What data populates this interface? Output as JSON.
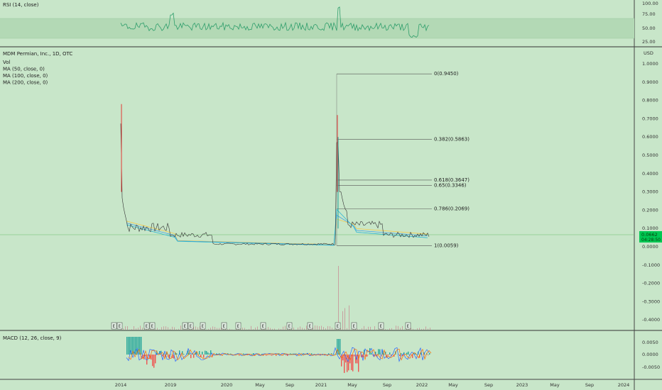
{
  "colors": {
    "background": "#c8e6c9",
    "rsi_band": "#b7dbb9",
    "rsi_line": "#2e9e6b",
    "price_line": "#333333",
    "ma50": "#26b5d6",
    "ma100": "#4aa3df",
    "ma200": "#f2c94c",
    "fib_line": "#555555",
    "macd_pos": "#26a69a",
    "macd_neg": "#ef5350",
    "current_price_bg": "#00c853",
    "horizontal_green": "#66bb6a"
  },
  "rsi": {
    "label": "RSI (14, close)",
    "axis_ticks": [
      "100.00",
      "75.00",
      "50.00",
      "25.00"
    ]
  },
  "main": {
    "title": "MDM Permian, Inc., 1D, OTC",
    "currency": "USD",
    "legend": [
      "Vol",
      "MA (50, close, 0)",
      "MA (100, close, 0)",
      "MA (200, close, 0)"
    ],
    "price_ticks": [
      "1.0000",
      "0.9000",
      "0.8000",
      "0.7000",
      "0.6000",
      "0.5000",
      "0.4000",
      "0.3000",
      "0.2000",
      "0.1000",
      "0.0000",
      "-0.1000",
      "-0.2000",
      "-0.3000",
      "-0.4000"
    ],
    "current_price": "0.0662",
    "countdown": "04:28:50",
    "earnings_marker": "E"
  },
  "fib": [
    {
      "label": "0(0.9450)",
      "value": 0.945
    },
    {
      "label": "0.382(0.5863)",
      "value": 0.5863
    },
    {
      "label": "0.618(0.3647)",
      "value": 0.3647
    },
    {
      "label": "0.65(0.3346)",
      "value": 0.3346
    },
    {
      "label": "0.786(0.2069)",
      "value": 0.2069
    },
    {
      "label": "1(0.0059)",
      "value": 0.0059
    }
  ],
  "macd": {
    "label": "MACD (12, 26, close, 9)",
    "axis_ticks": [
      "0.0050",
      "0.0000",
      "-0.0050"
    ]
  },
  "time_axis": [
    "2014",
    "2019",
    "2020",
    "May",
    "Sep",
    "2021",
    "May",
    "Sep",
    "2022",
    "May",
    "Sep",
    "2023",
    "May",
    "Sep",
    "2024"
  ],
  "chart_data": {
    "type": "line",
    "title": "MDM Permian, Inc., 1D, OTC",
    "ylabel": "USD",
    "ylim": [
      -0.45,
      1.05
    ],
    "fibonacci_levels": [
      {
        "level": 0,
        "price": 0.945
      },
      {
        "level": 0.382,
        "price": 0.5863
      },
      {
        "level": 0.618,
        "price": 0.3647
      },
      {
        "level": 0.65,
        "price": 0.3346
      },
      {
        "level": 0.786,
        "price": 0.2069
      },
      {
        "level": 1,
        "price": 0.0059
      }
    ],
    "price_series": [
      {
        "x": "2014",
        "y": 0.78
      },
      {
        "x": "2014",
        "y": 0.3
      },
      {
        "x": "2014",
        "y": 0.12
      },
      {
        "x": "2019",
        "y": 0.08
      },
      {
        "x": "2019",
        "y": 0.04
      },
      {
        "x": "2020",
        "y": 0.02
      },
      {
        "x": "2020-May",
        "y": 0.01
      },
      {
        "x": "2020-Sep",
        "y": 0.008
      },
      {
        "x": "2021",
        "y": 0.012
      },
      {
        "x": "2021-Feb",
        "y": 0.945
      },
      {
        "x": "2021-Feb",
        "y": 0.6
      },
      {
        "x": "2021-Mar",
        "y": 0.3
      },
      {
        "x": "2021-May",
        "y": 0.15
      },
      {
        "x": "2021-Sep",
        "y": 0.08
      },
      {
        "x": "2022",
        "y": 0.0662
      }
    ],
    "current_price": 0.0662,
    "rsi_range": [
      25,
      100
    ],
    "macd_range": [
      -0.0075,
      0.0075
    ]
  }
}
